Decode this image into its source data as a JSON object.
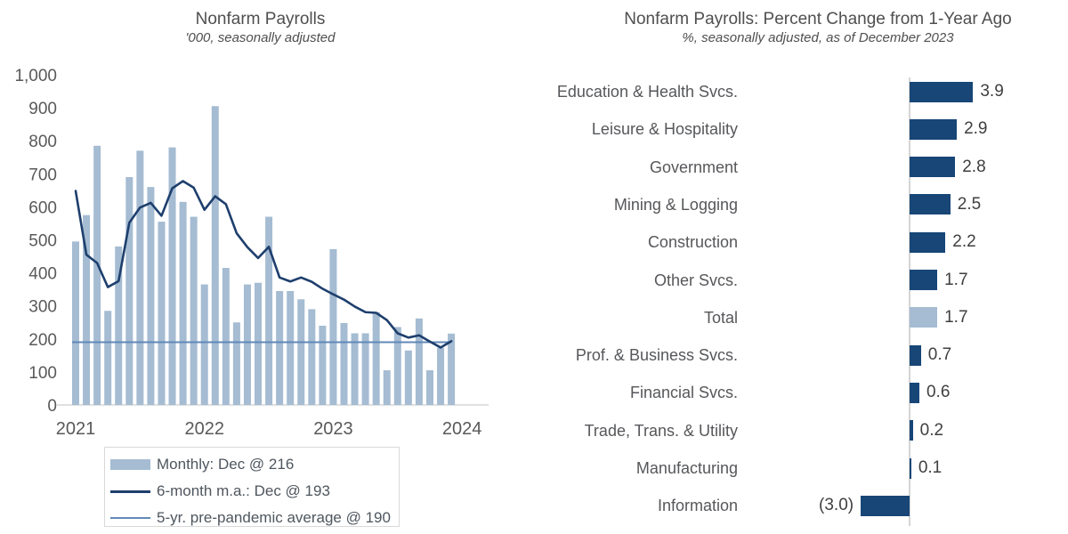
{
  "colors": {
    "monthly_bar": "#a5bcd2",
    "dark_bar": "#174677",
    "ma_line": "#1e3f6d",
    "avg_line": "#6189b8",
    "axis_line": "#d5d5d5",
    "tick_text": "#595959",
    "title_text": "#4f4f4f",
    "value_text": "#3f3f3f",
    "category_text": "#56575a",
    "legend_text": "#4e565e",
    "legend_border": "#d9d9d9"
  },
  "chart_data": [
    {
      "type": "bar",
      "title": "Nonfarm Payrolls",
      "subtitle": "'000, seasonally adjusted",
      "x_start": "2021-01",
      "x_end": "2023-12",
      "x_tick_labels": [
        "2021",
        "2022",
        "2023",
        "2024"
      ],
      "y_tick_labels": [
        "0",
        "100",
        "200",
        "300",
        "400",
        "500",
        "600",
        "700",
        "800",
        "900",
        "1,000"
      ],
      "ylim": [
        0,
        1000
      ],
      "grid": false,
      "legend_position": "bottom",
      "series": [
        {
          "name": "Monthly: Dec @ 216",
          "type": "bar",
          "values": [
            495,
            575,
            785,
            285,
            480,
            690,
            770,
            660,
            555,
            780,
            615,
            570,
            365,
            905,
            415,
            250,
            365,
            370,
            570,
            345,
            345,
            320,
            290,
            240,
            472,
            248,
            217,
            217,
            281,
            105,
            236,
            165,
            262,
            105,
            173,
            216
          ]
        },
        {
          "name": "6-month m.a.: Dec @ 193",
          "type": "line",
          "values": [
            648,
            455,
            430,
            357,
            375,
            552,
            598,
            612,
            573,
            656,
            678,
            658,
            591,
            632,
            608,
            520,
            478,
            445,
            479,
            386,
            374,
            386,
            373,
            352,
            335,
            319,
            298,
            281,
            279,
            257,
            217,
            204,
            211,
            192,
            174,
            193
          ]
        },
        {
          "name": "5-yr. pre-pandemic average @ 190",
          "type": "line-flat",
          "value": 190
        }
      ]
    },
    {
      "type": "bar",
      "orientation": "horizontal",
      "title": "Nonfarm Payrolls: Percent Change from 1-Year Ago",
      "subtitle": "%, seasonally adjusted, as of December 2023",
      "categories": [
        "Education & Health Svcs.",
        "Leisure & Hospitality",
        "Government",
        "Mining & Logging",
        "Construction",
        "Other Svcs.",
        "Total",
        "Prof. & Business Svcs.",
        "Financial Svcs.",
        "Trade, Trans. & Utility",
        "Manufacturing",
        "Information"
      ],
      "values": [
        3.9,
        2.9,
        2.8,
        2.5,
        2.2,
        1.7,
        1.7,
        0.7,
        0.6,
        0.2,
        0.1,
        -3.0
      ],
      "value_labels": [
        "3.9",
        "2.9",
        "2.8",
        "2.5",
        "2.2",
        "1.7",
        "1.7",
        "0.7",
        "0.6",
        "0.2",
        "0.1",
        "(3.0)"
      ],
      "total_index": 6,
      "grid": false
    }
  ]
}
